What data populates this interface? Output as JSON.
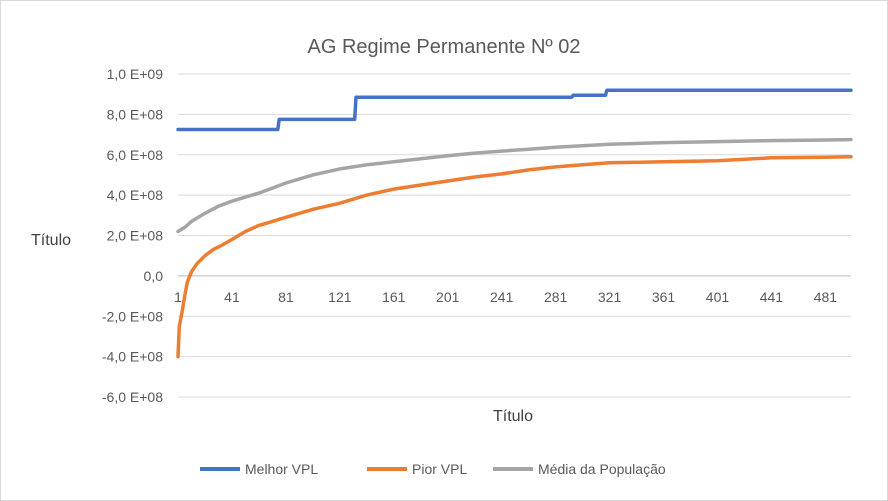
{
  "chart_data": {
    "type": "line",
    "title": "AG Regime Permanente Nº 02",
    "xlabel": "Título",
    "ylabel": "Título",
    "xlim": [
      1,
      500
    ],
    "ylim": [
      -600000000,
      1000000000
    ],
    "y_ticks": [
      {
        "value": 1000000000,
        "label": "1,0 E+09"
      },
      {
        "value": 800000000,
        "label": "8,0 E+08"
      },
      {
        "value": 600000000,
        "label": "6,0 E+08"
      },
      {
        "value": 400000000,
        "label": "4,0 E+08"
      },
      {
        "value": 200000000,
        "label": "2,0 E+08"
      },
      {
        "value": 0,
        "label": "0,0"
      },
      {
        "value": -200000000,
        "label": "-2,0 E+08"
      },
      {
        "value": -400000000,
        "label": "-4,0 E+08"
      },
      {
        "value": -600000000,
        "label": "-6,0 E+08"
      }
    ],
    "x_ticks": [
      1,
      41,
      81,
      121,
      161,
      201,
      241,
      281,
      321,
      361,
      401,
      441,
      481
    ],
    "grid": true,
    "legend_position": "bottom",
    "series": [
      {
        "name": "Melhor VPL",
        "color": "#4472C4",
        "points": [
          [
            1,
            725000000
          ],
          [
            75,
            725000000
          ],
          [
            76,
            775000000
          ],
          [
            132,
            775000000
          ],
          [
            133,
            885000000
          ],
          [
            293,
            885000000
          ],
          [
            294,
            895000000
          ],
          [
            318,
            895000000
          ],
          [
            319,
            920000000
          ],
          [
            500,
            920000000
          ]
        ]
      },
      {
        "name": "Pior VPL",
        "color": "#ED7D31",
        "points": [
          [
            1,
            -400000000
          ],
          [
            2,
            -250000000
          ],
          [
            4,
            -180000000
          ],
          [
            6,
            -100000000
          ],
          [
            8,
            -30000000
          ],
          [
            11,
            20000000
          ],
          [
            15,
            60000000
          ],
          [
            21,
            100000000
          ],
          [
            27,
            130000000
          ],
          [
            33,
            150000000
          ],
          [
            41,
            180000000
          ],
          [
            51,
            220000000
          ],
          [
            61,
            250000000
          ],
          [
            71,
            270000000
          ],
          [
            81,
            290000000
          ],
          [
            101,
            330000000
          ],
          [
            121,
            360000000
          ],
          [
            141,
            400000000
          ],
          [
            161,
            430000000
          ],
          [
            181,
            450000000
          ],
          [
            201,
            470000000
          ],
          [
            221,
            490000000
          ],
          [
            241,
            505000000
          ],
          [
            261,
            525000000
          ],
          [
            281,
            540000000
          ],
          [
            301,
            550000000
          ],
          [
            321,
            560000000
          ],
          [
            361,
            565000000
          ],
          [
            401,
            570000000
          ],
          [
            441,
            585000000
          ],
          [
            481,
            588000000
          ],
          [
            500,
            590000000
          ]
        ]
      },
      {
        "name": "Média da População",
        "color": "#A5A5A5",
        "points": [
          [
            1,
            220000000
          ],
          [
            6,
            240000000
          ],
          [
            11,
            270000000
          ],
          [
            21,
            310000000
          ],
          [
            31,
            345000000
          ],
          [
            41,
            370000000
          ],
          [
            51,
            390000000
          ],
          [
            61,
            410000000
          ],
          [
            71,
            435000000
          ],
          [
            81,
            460000000
          ],
          [
            101,
            500000000
          ],
          [
            121,
            530000000
          ],
          [
            141,
            550000000
          ],
          [
            161,
            565000000
          ],
          [
            181,
            580000000
          ],
          [
            201,
            595000000
          ],
          [
            221,
            608000000
          ],
          [
            241,
            618000000
          ],
          [
            261,
            627000000
          ],
          [
            281,
            637000000
          ],
          [
            301,
            645000000
          ],
          [
            321,
            652000000
          ],
          [
            361,
            660000000
          ],
          [
            401,
            665000000
          ],
          [
            441,
            670000000
          ],
          [
            481,
            673000000
          ],
          [
            500,
            675000000
          ]
        ]
      }
    ]
  }
}
